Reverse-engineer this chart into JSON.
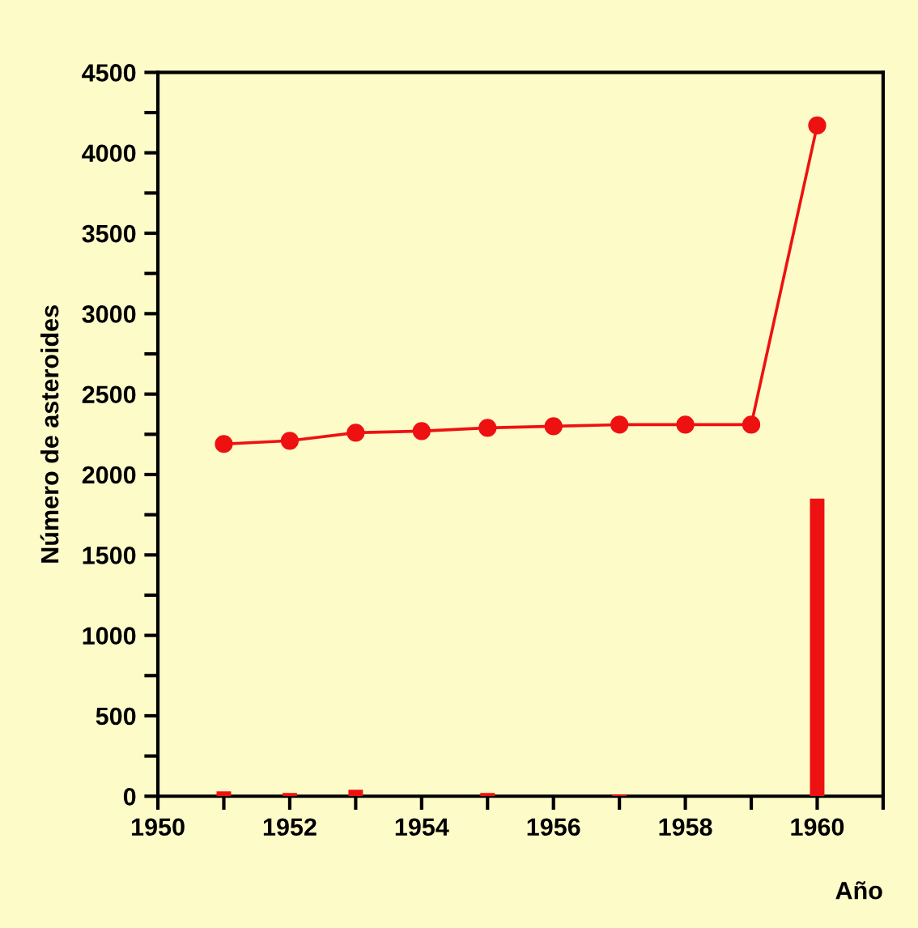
{
  "chart_data": {
    "type": "line",
    "xlabel": "Año",
    "ylabel": "Número de asteroides",
    "xlim": [
      1950,
      1961
    ],
    "ylim": [
      0,
      4500
    ],
    "xticks": [
      1950,
      {
        "value": 1951,
        "label": null
      },
      1952,
      {
        "value": 1953,
        "label": null
      },
      1954,
      {
        "value": 1955,
        "label": null
      },
      1956,
      {
        "value": 1957,
        "label": null
      },
      1958,
      {
        "value": 1959,
        "label": null
      },
      1960,
      {
        "value": 1961,
        "label": null
      }
    ],
    "yticks": [
      0,
      {
        "value": 250,
        "label": null
      },
      500,
      {
        "value": 750,
        "label": null
      },
      1000,
      {
        "value": 1250,
        "label": null
      },
      1500,
      {
        "value": 1750,
        "label": null
      },
      2000,
      {
        "value": 2250,
        "label": null
      },
      2500,
      {
        "value": 2750,
        "label": null
      },
      3000,
      {
        "value": 3250,
        "label": null
      },
      3500,
      {
        "value": 3750,
        "label": null
      },
      4000,
      {
        "value": 4250,
        "label": null
      },
      4500
    ],
    "grid": false,
    "legend": false,
    "marker": "circle",
    "line_style": "solid",
    "series": [
      {
        "color": "#ee1111",
        "x": [
          1951,
          1952,
          1953,
          1954,
          1955,
          1956,
          1957,
          1958,
          1959,
          1960
        ],
        "values": [
          2190,
          2210,
          2260,
          2270,
          2290,
          2300,
          2310,
          2310,
          2310,
          4170
        ]
      },
      {
        "type": "bar",
        "color": "#ee1111",
        "x": [
          1951,
          1952,
          1953,
          1955,
          1957,
          1960
        ],
        "values": [
          30,
          20,
          40,
          20,
          10,
          1850
        ]
      }
    ]
  }
}
